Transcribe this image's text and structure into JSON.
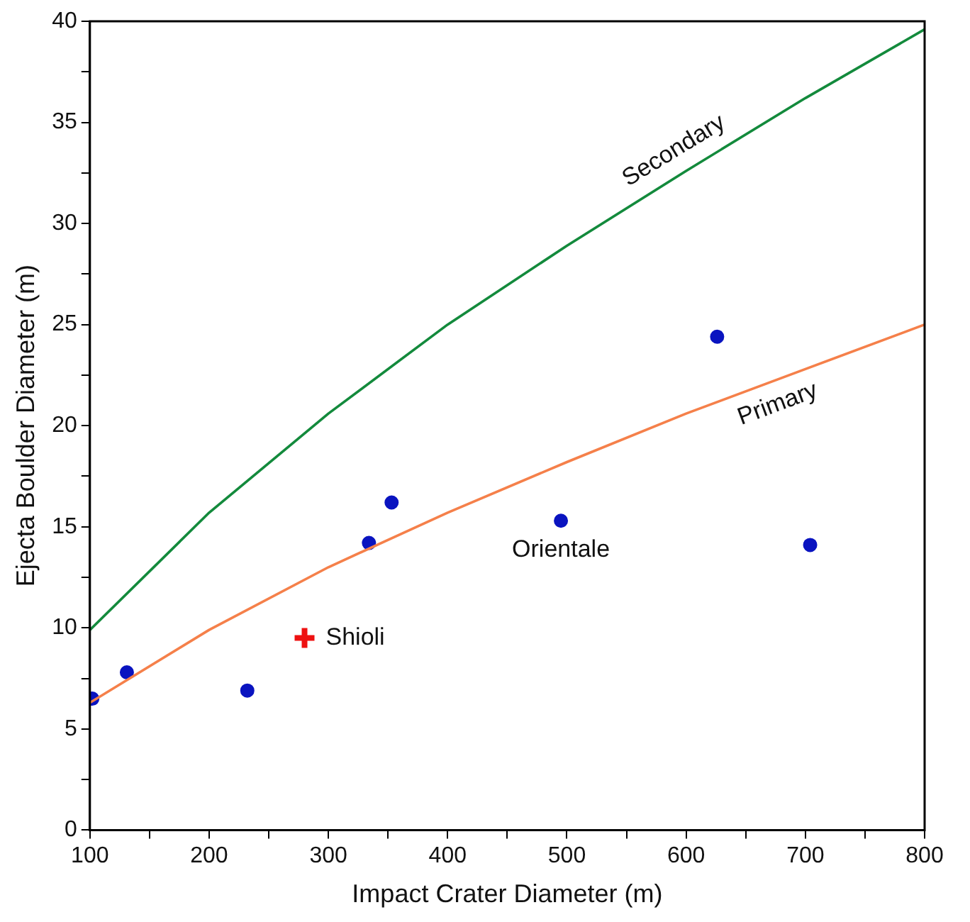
{
  "chart_data": {
    "type": "scatter",
    "xlabel": "Impact Crater Diameter (m)",
    "ylabel": "Ejecta Boulder Diameter (m)",
    "xlim": [
      100,
      800
    ],
    "ylim": [
      0,
      40
    ],
    "xticks": [
      100,
      {
        "value": 150,
        "label": null
      },
      200,
      {
        "value": 250,
        "label": null
      },
      300,
      {
        "value": 350,
        "label": null
      },
      400,
      {
        "value": 450,
        "label": null
      },
      500,
      {
        "value": 550,
        "label": null
      },
      600,
      {
        "value": 650,
        "label": null
      },
      700,
      {
        "value": 750,
        "label": null
      },
      800
    ],
    "yticks": [
      0,
      {
        "value": 2.5,
        "label": null
      },
      5,
      {
        "value": 7.5,
        "label": null
      },
      10,
      {
        "value": 12.5,
        "label": null
      },
      15,
      {
        "value": 17.5,
        "label": null
      },
      20,
      {
        "value": 22.5,
        "label": null
      },
      25,
      {
        "value": 27.5,
        "label": null
      },
      30,
      {
        "value": 32.5,
        "label": null
      },
      35,
      {
        "value": 37.5,
        "label": null
      },
      40
    ],
    "grid": false,
    "legend": false,
    "series": [
      {
        "name": "Secondary",
        "type": "line",
        "color": "#138a3c",
        "marker": "none",
        "x": [
          100,
          200,
          300,
          400,
          500,
          600,
          700,
          800
        ],
        "values": [
          9.9,
          15.7,
          20.6,
          25.0,
          28.9,
          32.6,
          36.2,
          39.6
        ]
      },
      {
        "name": "Primary",
        "type": "line",
        "color": "#f5804a",
        "marker": "none",
        "x": [
          100,
          200,
          300,
          400,
          500,
          600,
          700,
          800
        ],
        "values": [
          6.3,
          9.9,
          13.0,
          15.7,
          18.2,
          20.6,
          22.8,
          25.0
        ]
      },
      {
        "type": "scatter",
        "color": "#0a14c0",
        "marker": "circle",
        "x": [
          102,
          131,
          232,
          334,
          353,
          495,
          626,
          704
        ],
        "values": [
          6.5,
          7.8,
          6.9,
          14.2,
          16.2,
          15.3,
          24.4,
          14.1
        ]
      },
      {
        "name": "Shioli",
        "type": "scatter",
        "color": "#ee1111",
        "marker": "cross",
        "x": [
          280
        ],
        "values": [
          9.5
        ]
      }
    ],
    "annotations": [
      {
        "text": "Orientale",
        "x": 495,
        "y": 15.3
      }
    ]
  }
}
